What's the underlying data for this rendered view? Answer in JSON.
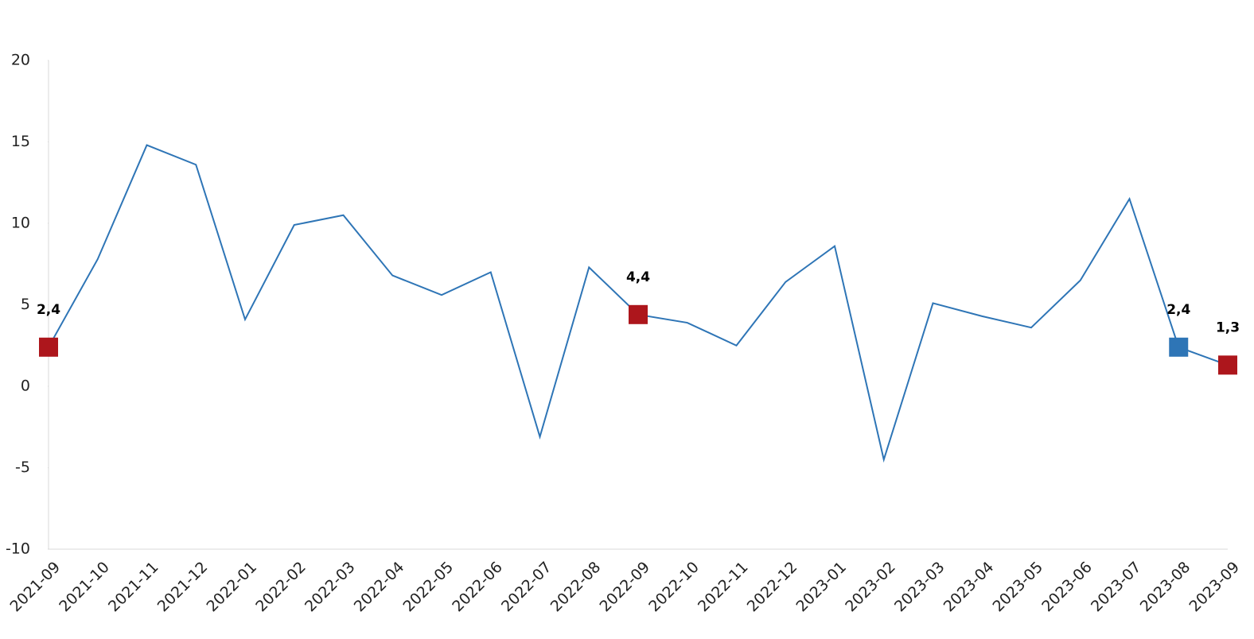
{
  "chart_data": {
    "type": "line",
    "categories": [
      "2021-09",
      "2021-10",
      "2021-11",
      "2021-12",
      "2022-01",
      "2022-02",
      "2022-03",
      "2022-04",
      "2022-05",
      "2022-06",
      "2022-07",
      "2022-08",
      "2022-09",
      "2022-10",
      "2022-11",
      "2022-12",
      "2023-01",
      "2023-02",
      "2023-03",
      "2023-04",
      "2023-05",
      "2023-06",
      "2023-07",
      "2023-08",
      "2023-09"
    ],
    "series": [
      {
        "color": "#2e75b6",
        "values": [
          2.4,
          7.8,
          14.8,
          13.6,
          4.1,
          9.9,
          10.5,
          6.8,
          5.6,
          7.0,
          -3.1,
          7.3,
          4.4,
          3.9,
          2.5,
          6.4,
          8.6,
          -4.5,
          5.1,
          4.3,
          3.6,
          6.5,
          11.5,
          2.4,
          1.3
        ],
        "value_labels": [
          "2,4",
          null,
          null,
          null,
          null,
          null,
          null,
          null,
          null,
          null,
          null,
          null,
          "4,4",
          null,
          null,
          null,
          null,
          null,
          null,
          null,
          null,
          null,
          null,
          "2,4",
          "1,3"
        ],
        "marker_colors": [
          "#ad161c",
          null,
          null,
          null,
          null,
          null,
          null,
          null,
          null,
          null,
          null,
          null,
          "#ad161c",
          null,
          null,
          null,
          null,
          null,
          null,
          null,
          null,
          null,
          null,
          "#2e75b6",
          "#ad161c"
        ]
      }
    ],
    "ylim": [
      -10,
      20
    ],
    "yticks": [
      -10,
      -5,
      0,
      5,
      10,
      15,
      20
    ],
    "grid": false
  }
}
